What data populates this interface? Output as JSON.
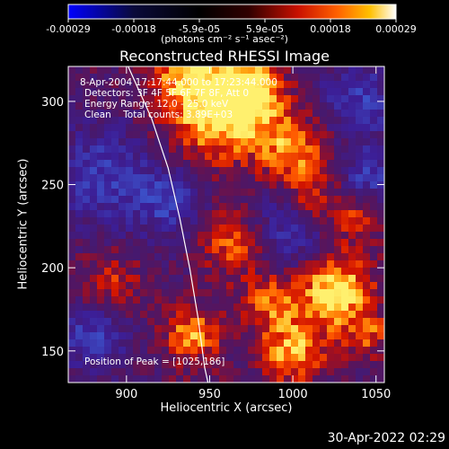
{
  "colorbar": {
    "tick_labels": [
      "-0.00029",
      "-0.00018",
      "-5.9e-05",
      "5.9e-05",
      "0.00018",
      "0.00029"
    ],
    "units_label": "(photons cm⁻² s⁻¹ asec⁻²)",
    "colors": [
      "#0000ff",
      "#0a0a2a",
      "#000000",
      "#2a0a0a",
      "#c81000",
      "#ff6000",
      "#ffc000",
      "#ffffff"
    ]
  },
  "chart_data": {
    "type": "heatmap",
    "title": "Reconstructed RHESSI Image",
    "xlabel": "Heliocentric X (arcsec)",
    "ylabel": "Heliocentric Y (arcsec)",
    "xlim": [
      865,
      1055
    ],
    "ylim": [
      131,
      321
    ],
    "xticks": [
      900,
      950,
      1000,
      1050
    ],
    "yticks": [
      150,
      200,
      250,
      300
    ],
    "annotations": [
      "8-Apr-2004 17:17:44.000 to 17:23:44.000",
      "Detectors: 3F 4F 5F 6F 7F 8F, Att 0",
      "Energy Range: 12.0 - 25.0 keV",
      "Clean    Total counts: 3.89E+03"
    ],
    "peak_label": "Position of Peak = [1025,186]",
    "peak": [
      1025,
      186
    ],
    "limb_curve": [
      [
        901,
        321
      ],
      [
        915,
        290
      ],
      [
        925,
        260
      ],
      [
        932,
        230
      ],
      [
        938,
        200
      ],
      [
        943,
        170
      ],
      [
        947,
        140
      ],
      [
        949,
        131
      ]
    ],
    "bright_regions": [
      {
        "x": 955,
        "y": 295,
        "r": 30,
        "amp": 1.0
      },
      {
        "x": 975,
        "y": 305,
        "r": 18,
        "amp": 0.8
      },
      {
        "x": 935,
        "y": 320,
        "r": 20,
        "amp": 0.6
      },
      {
        "x": 1000,
        "y": 270,
        "r": 22,
        "amp": 0.7
      },
      {
        "x": 1035,
        "y": 230,
        "r": 18,
        "amp": 0.5
      },
      {
        "x": 965,
        "y": 215,
        "r": 20,
        "amp": 0.6
      },
      {
        "x": 1025,
        "y": 186,
        "r": 22,
        "amp": 1.0
      },
      {
        "x": 985,
        "y": 180,
        "r": 16,
        "amp": 0.6
      },
      {
        "x": 1000,
        "y": 150,
        "r": 20,
        "amp": 0.8
      },
      {
        "x": 940,
        "y": 160,
        "r": 18,
        "amp": 0.7
      },
      {
        "x": 890,
        "y": 190,
        "r": 18,
        "amp": 0.5
      },
      {
        "x": 1045,
        "y": 160,
        "r": 14,
        "amp": 0.5
      },
      {
        "x": 1010,
        "y": 240,
        "r": 16,
        "amp": 0.55
      }
    ],
    "dark_regions": [
      {
        "x": 885,
        "y": 255,
        "r": 28
      },
      {
        "x": 925,
        "y": 240,
        "r": 20
      },
      {
        "x": 1000,
        "y": 225,
        "r": 25
      },
      {
        "x": 1040,
        "y": 300,
        "r": 22
      },
      {
        "x": 880,
        "y": 160,
        "r": 20
      },
      {
        "x": 1045,
        "y": 255,
        "r": 16
      }
    ]
  },
  "footer": {
    "timestamp": "30-Apr-2022 02:29"
  }
}
